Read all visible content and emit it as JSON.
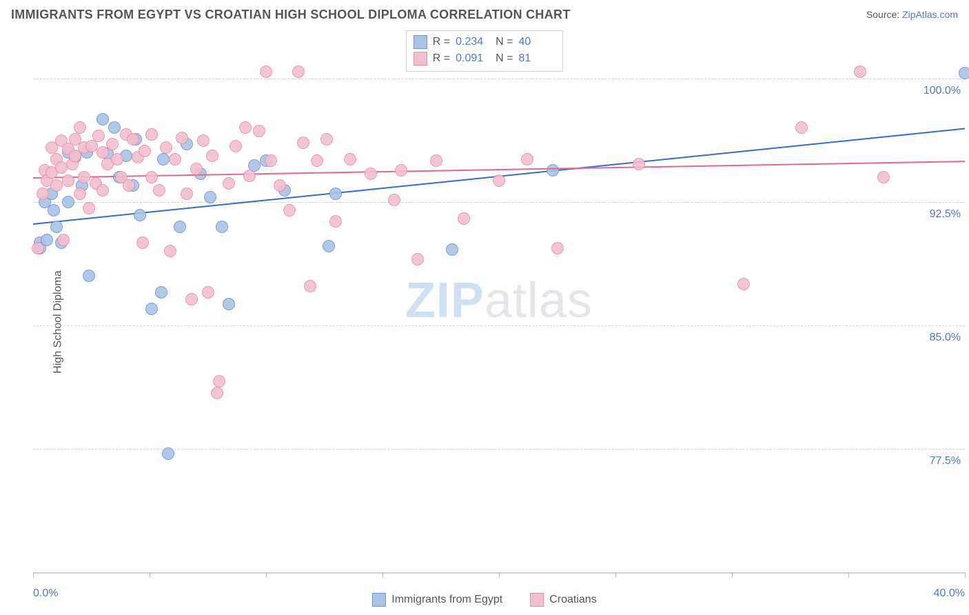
{
  "title": "IMMIGRANTS FROM EGYPT VS CROATIAN HIGH SCHOOL DIPLOMA CORRELATION CHART",
  "source_label": "Source:",
  "source_name": "ZipAtlas.com",
  "watermark_a": "ZIP",
  "watermark_b": "atlas",
  "chart": {
    "type": "scatter",
    "ylabel": "High School Diploma",
    "xlim": [
      0,
      40
    ],
    "ylim": [
      70,
      103
    ],
    "x_min_label": "0.0%",
    "x_max_label": "40.0%",
    "x_tick_step": 5,
    "y_gridlines": [
      77.5,
      85.0,
      92.5,
      100.0
    ],
    "y_grid_labels": [
      "77.5%",
      "85.0%",
      "92.5%",
      "100.0%"
    ],
    "background_color": "#ffffff",
    "grid_color": "#cfd4dc",
    "axis_label_color": "#5077c5",
    "marker_radius": 9,
    "marker_border_width": 1,
    "marker_fill_opacity": 0.35,
    "watermark_colors": [
      "#cfe0f2",
      "#e3e6ea"
    ],
    "series": [
      {
        "id": "egypt",
        "label": "Immigrants from Egypt",
        "color_fill": "#a9c4e6",
        "color_stroke": "#6f96cf",
        "r_label": "0.234",
        "n_label": "40",
        "regression": {
          "x1": 0,
          "y1": 91.2,
          "x2": 40,
          "y2": 97.0,
          "color": "#2f6fd0",
          "width": 2
        },
        "points": [
          [
            0.3,
            90.0
          ],
          [
            0.3,
            89.7
          ],
          [
            0.5,
            92.5
          ],
          [
            0.6,
            90.2
          ],
          [
            0.8,
            93.0
          ],
          [
            0.9,
            92.0
          ],
          [
            1.0,
            91.0
          ],
          [
            1.2,
            90.0
          ],
          [
            1.5,
            92.5
          ],
          [
            1.5,
            95.5
          ],
          [
            1.8,
            95.2
          ],
          [
            2.1,
            93.5
          ],
          [
            2.3,
            95.5
          ],
          [
            2.4,
            88.0
          ],
          [
            3.0,
            97.5
          ],
          [
            3.2,
            95.4
          ],
          [
            3.5,
            97.0
          ],
          [
            3.7,
            94.0
          ],
          [
            4.0,
            95.3
          ],
          [
            4.3,
            93.5
          ],
          [
            4.4,
            96.3
          ],
          [
            4.6,
            91.7
          ],
          [
            5.1,
            86.0
          ],
          [
            5.5,
            87.0
          ],
          [
            5.6,
            95.1
          ],
          [
            5.8,
            77.2
          ],
          [
            6.3,
            91.0
          ],
          [
            6.6,
            96.0
          ],
          [
            7.2,
            94.2
          ],
          [
            7.6,
            92.8
          ],
          [
            8.1,
            91.0
          ],
          [
            8.4,
            86.3
          ],
          [
            9.5,
            94.7
          ],
          [
            10.0,
            95.0
          ],
          [
            10.8,
            93.2
          ],
          [
            12.7,
            89.8
          ],
          [
            13.0,
            93.0
          ],
          [
            18.0,
            89.6
          ],
          [
            22.3,
            94.4
          ],
          [
            40.0,
            100.3
          ]
        ]
      },
      {
        "id": "croatians",
        "label": "Croatians",
        "color_fill": "#f2bfcf",
        "color_stroke": "#e690ab",
        "r_label": "0.091",
        "n_label": "81",
        "regression": {
          "x1": 0,
          "y1": 94.0,
          "x2": 40,
          "y2": 95.0,
          "color": "#e06a8e",
          "width": 2
        },
        "points": [
          [
            0.2,
            89.7
          ],
          [
            0.4,
            93.0
          ],
          [
            0.5,
            94.4
          ],
          [
            0.6,
            93.8
          ],
          [
            0.8,
            94.3
          ],
          [
            0.8,
            95.8
          ],
          [
            1.0,
            93.5
          ],
          [
            1.0,
            95.1
          ],
          [
            1.2,
            94.6
          ],
          [
            1.2,
            96.2
          ],
          [
            1.3,
            90.2
          ],
          [
            1.5,
            93.8
          ],
          [
            1.5,
            95.7
          ],
          [
            1.7,
            94.8
          ],
          [
            1.8,
            95.3
          ],
          [
            1.8,
            96.3
          ],
          [
            2.0,
            93.0
          ],
          [
            2.0,
            97.0
          ],
          [
            2.2,
            94.0
          ],
          [
            2.2,
            95.8
          ],
          [
            2.4,
            92.1
          ],
          [
            2.5,
            95.9
          ],
          [
            2.7,
            93.6
          ],
          [
            2.8,
            96.5
          ],
          [
            3.0,
            95.5
          ],
          [
            3.0,
            93.2
          ],
          [
            3.2,
            94.8
          ],
          [
            3.4,
            96.0
          ],
          [
            3.6,
            95.1
          ],
          [
            3.8,
            94.0
          ],
          [
            4.0,
            96.6
          ],
          [
            4.1,
            93.5
          ],
          [
            4.3,
            96.3
          ],
          [
            4.5,
            95.2
          ],
          [
            4.7,
            90.0
          ],
          [
            4.8,
            95.6
          ],
          [
            5.1,
            94.0
          ],
          [
            5.1,
            96.6
          ],
          [
            5.4,
            93.2
          ],
          [
            5.7,
            95.8
          ],
          [
            5.9,
            89.5
          ],
          [
            6.1,
            95.1
          ],
          [
            6.4,
            96.4
          ],
          [
            6.6,
            93.0
          ],
          [
            6.8,
            86.6
          ],
          [
            7.0,
            94.5
          ],
          [
            7.3,
            96.2
          ],
          [
            7.5,
            87.0
          ],
          [
            7.7,
            95.3
          ],
          [
            7.9,
            80.9
          ],
          [
            8.0,
            81.6
          ],
          [
            8.4,
            93.6
          ],
          [
            8.7,
            95.9
          ],
          [
            9.1,
            97.0
          ],
          [
            9.3,
            94.1
          ],
          [
            9.7,
            96.8
          ],
          [
            10.0,
            100.4
          ],
          [
            10.2,
            95.0
          ],
          [
            10.6,
            93.5
          ],
          [
            11.0,
            92.0
          ],
          [
            11.4,
            100.4
          ],
          [
            11.6,
            96.1
          ],
          [
            11.9,
            87.4
          ],
          [
            12.2,
            95.0
          ],
          [
            12.6,
            96.3
          ],
          [
            13.0,
            91.3
          ],
          [
            13.6,
            95.1
          ],
          [
            14.5,
            94.2
          ],
          [
            15.5,
            92.6
          ],
          [
            15.8,
            94.4
          ],
          [
            16.5,
            89.0
          ],
          [
            17.3,
            95.0
          ],
          [
            18.5,
            91.5
          ],
          [
            20.0,
            93.8
          ],
          [
            21.2,
            95.1
          ],
          [
            22.5,
            89.7
          ],
          [
            26.0,
            94.8
          ],
          [
            30.5,
            87.5
          ],
          [
            33.0,
            97.0
          ],
          [
            35.5,
            100.4
          ],
          [
            36.5,
            94.0
          ]
        ]
      }
    ]
  },
  "stats_header": {
    "r": "R =",
    "n": "N ="
  }
}
